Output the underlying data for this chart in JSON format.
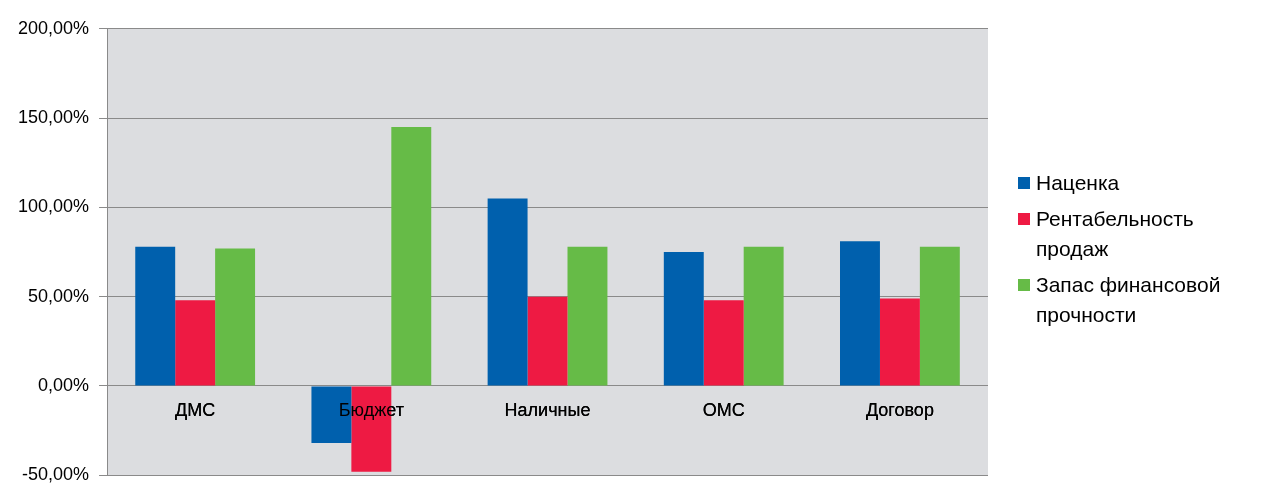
{
  "chart_data": {
    "type": "bar",
    "categories": [
      "ДМС",
      "Бюджет",
      "Наличные",
      "ОМС",
      "Договор"
    ],
    "series": [
      {
        "name": "Наценка",
        "color": "#0060ad",
        "values": [
          78,
          -32,
          105,
          75,
          81
        ]
      },
      {
        "name": "Рентабельность продаж",
        "color": "#ee1a43",
        "values": [
          48,
          -48,
          50,
          48,
          49
        ]
      },
      {
        "name": "Запас финансовой прочности",
        "color": "#66bb47",
        "values": [
          77,
          145,
          78,
          78,
          78
        ]
      }
    ],
    "ylim": [
      -50,
      200
    ],
    "yticks": [
      {
        "value": -50,
        "label": "-50,00%"
      },
      {
        "value": 0,
        "label": "0,00%"
      },
      {
        "value": 50,
        "label": "50,00%"
      },
      {
        "value": 100,
        "label": "100,00%"
      },
      {
        "value": 150,
        "label": "150,00%"
      },
      {
        "value": 200,
        "label": "200,00%"
      }
    ],
    "grid": "y",
    "legend": "right"
  }
}
